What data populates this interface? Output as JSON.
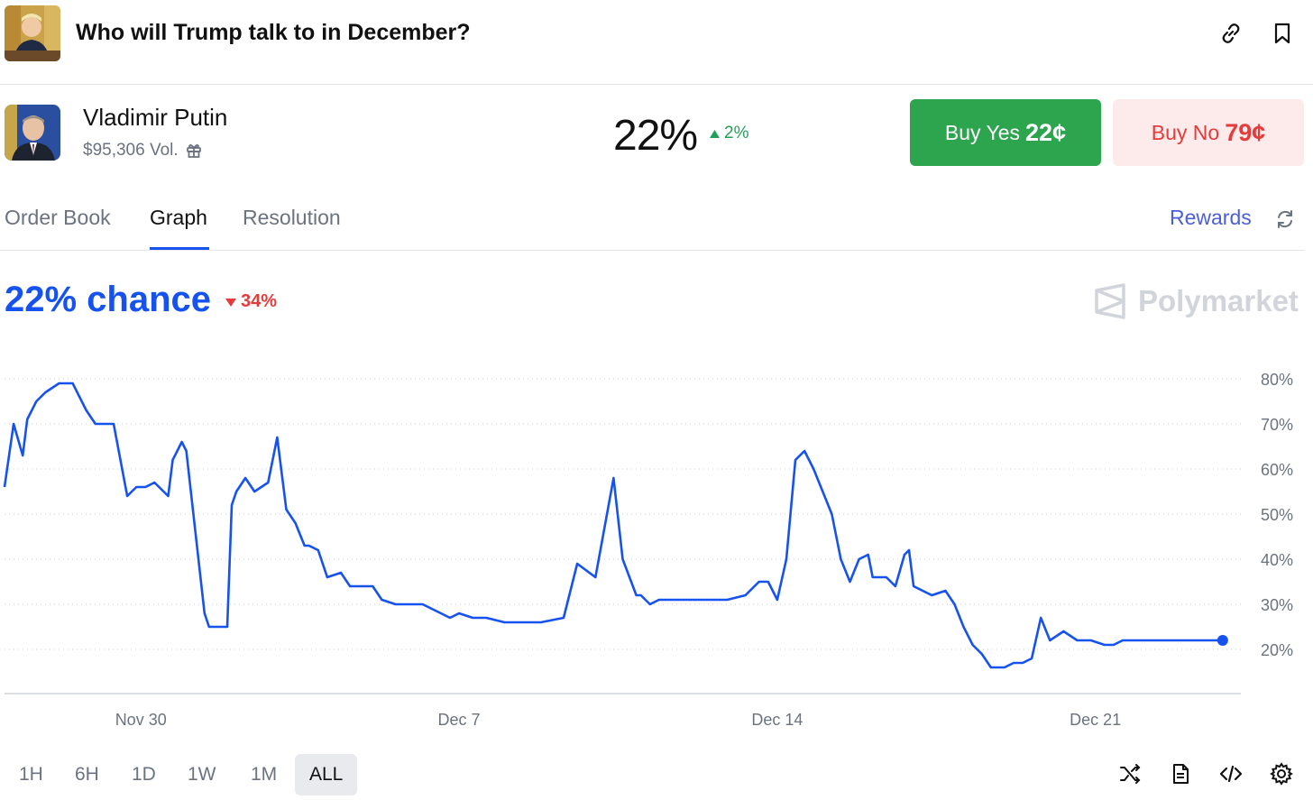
{
  "header": {
    "title": "Who will Trump talk to in December?"
  },
  "market": {
    "name": "Vladimir Putin",
    "volume": "$95,306 Vol.",
    "probability": "22%",
    "change": "2%",
    "buy_yes_label": "Buy Yes",
    "buy_yes_price": "22¢",
    "buy_no_label": "Buy No",
    "buy_no_price": "79¢"
  },
  "tabs": [
    {
      "label": "Order Book",
      "active": false
    },
    {
      "label": "Graph",
      "active": true
    },
    {
      "label": "Resolution",
      "active": false
    }
  ],
  "rewards_label": "Rewards",
  "graph": {
    "chance_label": "22% chance",
    "change": "34%",
    "brand": "Polymarket"
  },
  "ranges": [
    {
      "label": "1H",
      "active": false
    },
    {
      "label": "6H",
      "active": false
    },
    {
      "label": "1D",
      "active": false
    },
    {
      "label": "1W",
      "active": false
    },
    {
      "label": "1M",
      "active": false
    },
    {
      "label": "ALL",
      "active": true
    }
  ],
  "colors": {
    "accent": "#1652f0",
    "yes": "#2da44e",
    "no": "#e53b3b",
    "no_bg": "#fdeaea",
    "up": "#22a05a"
  },
  "chart_data": {
    "type": "line",
    "x_ticks": [
      "Nov 30",
      "Dec 7",
      "Dec 14",
      "Dec 21"
    ],
    "y_ticks": [
      "80%",
      "70%",
      "60%",
      "50%",
      "40%",
      "30%",
      "20%"
    ],
    "ylim": [
      10,
      82
    ],
    "xlim": [
      -3,
      24.2
    ],
    "series": [
      {
        "x": [
          -3.0,
          -2.8,
          -2.6,
          -2.5,
          -2.3,
          -2.1,
          -1.8,
          -1.5,
          -1.2,
          -1.0,
          -0.6,
          -0.3,
          -0.1,
          0.1,
          0.3,
          0.6,
          0.7,
          0.9,
          1.0,
          1.4,
          1.5,
          1.9,
          2.0,
          2.1,
          2.3,
          2.5,
          2.8,
          3.0,
          3.2,
          3.4,
          3.6,
          3.7,
          3.9,
          4.1,
          4.4,
          4.6,
          4.9,
          5.1,
          5.3,
          5.6,
          5.9,
          6.2,
          6.6,
          6.8,
          7.0,
          7.3,
          7.6,
          8.0,
          8.2,
          8.6,
          8.8,
          9.3,
          9.6,
          10.0,
          10.4,
          10.6,
          10.9,
          11.0,
          11.2,
          11.4,
          11.6,
          11.9,
          12.1,
          12.4,
          12.6,
          12.9,
          13.3,
          13.6,
          13.8,
          14.0,
          14.2,
          14.4,
          14.6,
          14.8,
          15.0,
          15.2,
          15.4,
          15.6,
          15.8,
          16.0,
          16.1,
          16.4,
          16.6,
          16.8,
          16.9,
          17.0,
          17.4,
          17.7,
          17.9,
          18.1,
          18.3,
          18.5,
          18.7,
          19.0,
          19.2,
          19.4,
          19.6,
          19.8,
          20.0,
          20.3,
          20.6,
          20.9,
          21.2,
          21.4,
          21.6,
          21.8,
          22.0,
          22.2,
          22.5,
          22.7,
          22.9,
          23.2,
          23.4,
          23.6,
          23.8
        ],
        "y": [
          56,
          70,
          63,
          71,
          75,
          77,
          79,
          79,
          73,
          70,
          70,
          54,
          56,
          56,
          57,
          54,
          62,
          66,
          64,
          28,
          25,
          25,
          52,
          55,
          58,
          55,
          57,
          67,
          51,
          48,
          43,
          43,
          42,
          36,
          37,
          34,
          34,
          34,
          31,
          30,
          30,
          30,
          28,
          27,
          28,
          27,
          27,
          26,
          26,
          26,
          26,
          27,
          39,
          36,
          58,
          40,
          32,
          32,
          30,
          31,
          31,
          31,
          31,
          31,
          31,
          31,
          32,
          35,
          35,
          31,
          40,
          62,
          64,
          60,
          55,
          50,
          40,
          35,
          40,
          41,
          36,
          36,
          34,
          41,
          42,
          34,
          32,
          33,
          30,
          25,
          21,
          19,
          16,
          16,
          17,
          17,
          18,
          27,
          22,
          24,
          22,
          22,
          21,
          21,
          22,
          22,
          22,
          22,
          22,
          22,
          22,
          22,
          22,
          22,
          22
        ]
      }
    ],
    "grid": true,
    "line_color": "#1652f0"
  }
}
